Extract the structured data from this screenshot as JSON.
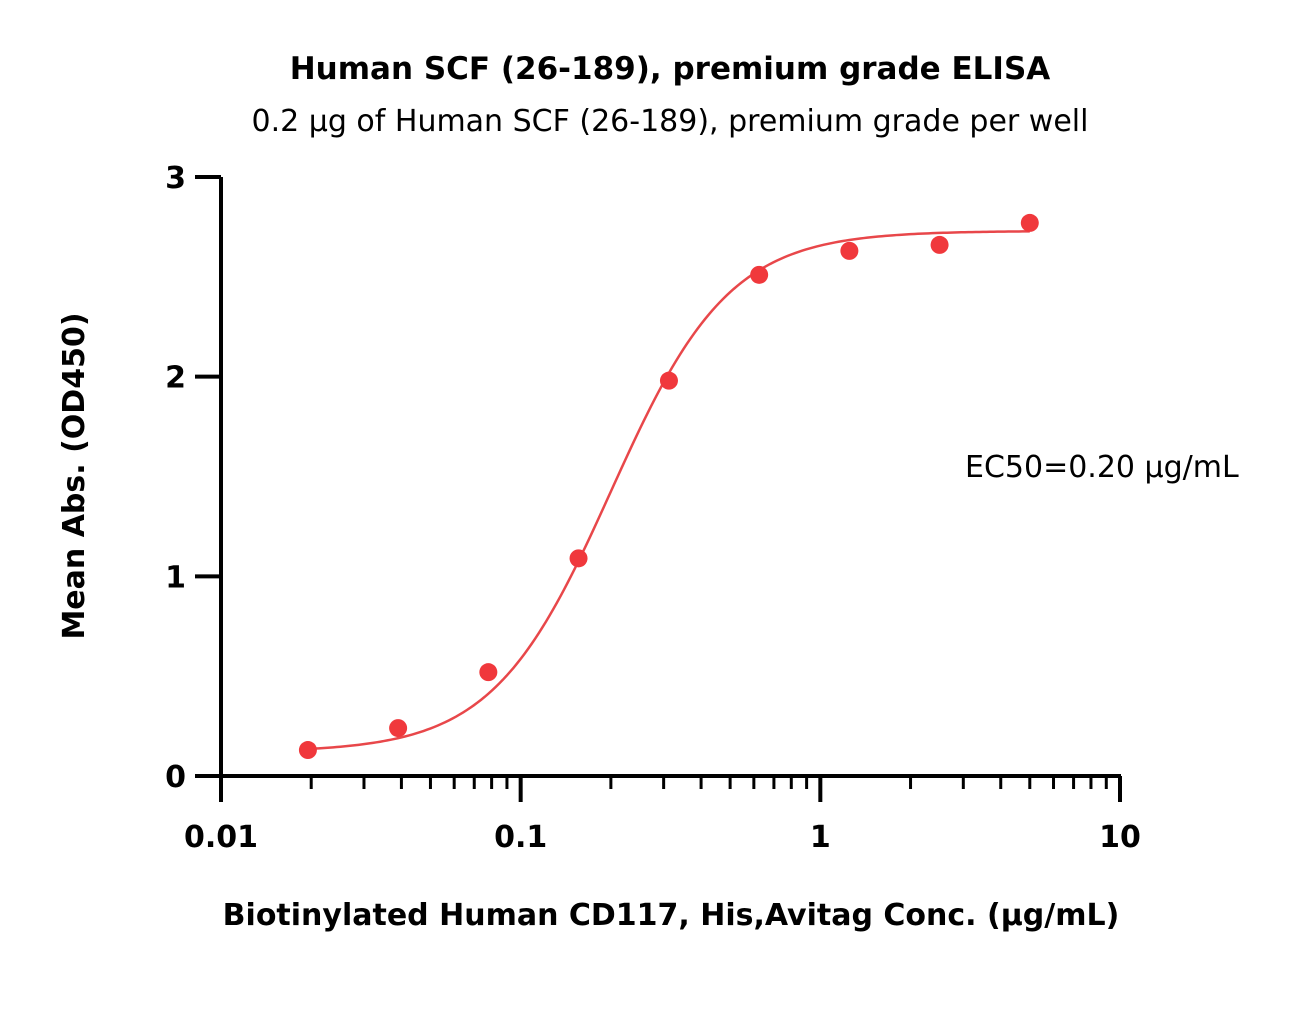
{
  "chart_data": {
    "type": "scatter",
    "title": "Human SCF (26-189), premium grade ELISA",
    "subtitle": "0.2 µg of Human SCF (26-189), premium grade per well",
    "xlabel": "Biotinylated Human CD117, His,Avitag Conc. (µg/mL)",
    "ylabel": "Mean Abs. (OD450)",
    "xscale": "log",
    "xlim": [
      0.01,
      10
    ],
    "ylim": [
      0,
      3
    ],
    "x_ticks": [
      0.01,
      0.1,
      1,
      10
    ],
    "x_tick_labels": [
      "0.01",
      "0.1",
      "1",
      "10"
    ],
    "y_ticks": [
      0,
      1,
      2,
      3
    ],
    "y_tick_labels": [
      "0",
      "1",
      "2",
      "3"
    ],
    "grid": false,
    "series": [
      {
        "color": "#f0383c",
        "x": [
          0.0195,
          0.039,
          0.078,
          0.156,
          0.3125,
          0.625,
          1.25,
          2.5,
          5
        ],
        "y": [
          0.13,
          0.24,
          0.52,
          1.09,
          1.98,
          2.51,
          2.63,
          2.66,
          2.77
        ]
      }
    ],
    "fit": {
      "model": "4PL",
      "color": "#e8474a",
      "bottom": 0.12,
      "top": 2.73,
      "ec50": 0.2,
      "hill": 2.2
    },
    "annotation": "EC50=0.20 µg/mL"
  }
}
